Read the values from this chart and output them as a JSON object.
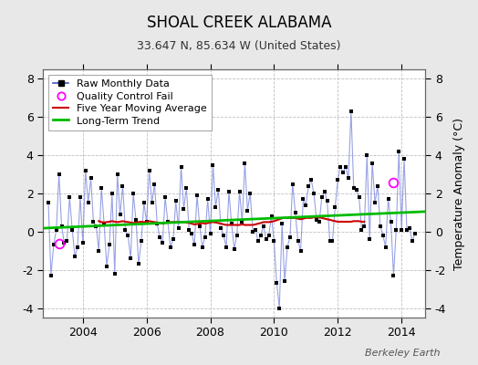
{
  "title": "SHOAL CREEK ALABAMA",
  "subtitle": "33.647 N, 85.634 W (United States)",
  "ylabel": "Temperature Anomaly (°C)",
  "watermark": "Berkeley Earth",
  "ylim": [
    -4.5,
    8.5
  ],
  "xlim": [
    2002.75,
    2014.75
  ],
  "bg_color": "#e8e8e8",
  "plot_bg_color": "#ffffff",
  "grid_color": "#c0c0c0",
  "xticks": [
    2004,
    2006,
    2008,
    2010,
    2012,
    2014
  ],
  "yticks": [
    -4,
    -2,
    0,
    2,
    4,
    6,
    8
  ],
  "raw_data_t": [
    2002.917,
    2003.0,
    2003.083,
    2003.167,
    2003.25,
    2003.333,
    2003.417,
    2003.5,
    2003.583,
    2003.667,
    2003.75,
    2003.833,
    2003.917,
    2004.0,
    2004.083,
    2004.167,
    2004.25,
    2004.333,
    2004.417,
    2004.5,
    2004.583,
    2004.667,
    2004.75,
    2004.833,
    2004.917,
    2005.0,
    2005.083,
    2005.167,
    2005.25,
    2005.333,
    2005.417,
    2005.5,
    2005.583,
    2005.667,
    2005.75,
    2005.833,
    2005.917,
    2006.0,
    2006.083,
    2006.167,
    2006.25,
    2006.333,
    2006.417,
    2006.5,
    2006.583,
    2006.667,
    2006.75,
    2006.833,
    2006.917,
    2007.0,
    2007.083,
    2007.167,
    2007.25,
    2007.333,
    2007.417,
    2007.5,
    2007.583,
    2007.667,
    2007.75,
    2007.833,
    2007.917,
    2008.0,
    2008.083,
    2008.167,
    2008.25,
    2008.333,
    2008.417,
    2008.5,
    2008.583,
    2008.667,
    2008.75,
    2008.833,
    2008.917,
    2009.0,
    2009.083,
    2009.167,
    2009.25,
    2009.333,
    2009.417,
    2009.5,
    2009.583,
    2009.667,
    2009.75,
    2009.833,
    2009.917,
    2010.0,
    2010.083,
    2010.167,
    2010.25,
    2010.333,
    2010.417,
    2010.5,
    2010.583,
    2010.667,
    2010.75,
    2010.833,
    2010.917,
    2011.0,
    2011.083,
    2011.167,
    2011.25,
    2011.333,
    2011.417,
    2011.5,
    2011.583,
    2011.667,
    2011.75,
    2011.833,
    2011.917,
    2012.0,
    2012.083,
    2012.167,
    2012.25,
    2012.333,
    2012.417,
    2012.5,
    2012.583,
    2012.667,
    2012.75,
    2012.833,
    2012.917,
    2013.0,
    2013.083,
    2013.167,
    2013.25,
    2013.333,
    2013.417,
    2013.5,
    2013.583,
    2013.667,
    2013.75,
    2013.833,
    2013.917,
    2014.0,
    2014.083,
    2014.167,
    2014.25,
    2014.333,
    2014.417
  ],
  "raw_data_v": [
    1.5,
    -2.3,
    -0.7,
    0.1,
    3.0,
    0.3,
    -0.6,
    -0.5,
    1.8,
    0.1,
    -1.3,
    -0.8,
    1.8,
    -0.6,
    3.2,
    1.5,
    2.8,
    0.5,
    0.3,
    -1.0,
    2.3,
    0.4,
    -1.8,
    -0.7,
    2.0,
    -2.2,
    3.0,
    0.9,
    2.4,
    0.1,
    -0.2,
    -1.4,
    2.0,
    0.6,
    -1.7,
    -0.5,
    1.5,
    0.5,
    3.2,
    1.5,
    2.5,
    0.4,
    -0.3,
    -0.6,
    1.8,
    0.5,
    -0.8,
    -0.4,
    1.6,
    0.2,
    3.4,
    1.2,
    2.3,
    0.1,
    -0.1,
    -0.7,
    1.9,
    0.3,
    -0.8,
    -0.3,
    1.7,
    -0.1,
    3.5,
    1.3,
    2.2,
    0.2,
    -0.2,
    -0.8,
    2.1,
    0.4,
    -0.9,
    -0.2,
    2.1,
    0.5,
    3.6,
    1.1,
    2.0,
    0.0,
    0.1,
    -0.5,
    -0.2,
    0.3,
    -0.4,
    -0.2,
    0.8,
    -0.5,
    -2.7,
    -4.0,
    0.4,
    -2.6,
    -0.8,
    -0.3,
    2.5,
    1.0,
    -0.5,
    -1.0,
    1.7,
    1.4,
    2.4,
    2.7,
    2.0,
    0.6,
    0.5,
    1.8,
    2.1,
    1.6,
    -0.5,
    -0.5,
    1.3,
    2.7,
    3.4,
    3.1,
    3.4,
    2.8,
    6.3,
    2.3,
    2.2,
    1.8,
    0.1,
    0.3,
    4.0,
    -0.4,
    3.6,
    1.5,
    2.4,
    0.3,
    -0.2,
    -0.8,
    1.7,
    0.5,
    -2.3,
    0.1,
    4.2,
    0.1,
    3.8,
    0.1,
    0.2,
    -0.5,
    -0.1
  ],
  "qc_fail": [
    {
      "t": 2003.25,
      "v": -0.65
    },
    {
      "t": 2013.75,
      "v": 2.55
    }
  ],
  "moving_avg_t": [
    2004.5,
    2004.583,
    2004.667,
    2004.75,
    2004.833,
    2004.917,
    2005.0,
    2005.083,
    2005.167,
    2005.25,
    2005.333,
    2005.417,
    2005.5,
    2005.583,
    2005.667,
    2005.75,
    2005.833,
    2005.917,
    2006.0,
    2006.083,
    2006.167,
    2006.25,
    2006.333,
    2006.417,
    2006.5,
    2006.583,
    2006.667,
    2006.75,
    2006.833,
    2006.917,
    2007.0,
    2007.083,
    2007.167,
    2007.25,
    2007.333,
    2007.417,
    2007.5,
    2007.583,
    2007.667,
    2007.75,
    2007.833,
    2007.917,
    2008.0,
    2008.083,
    2008.167,
    2008.25,
    2008.333,
    2008.417,
    2008.5,
    2008.583,
    2008.667,
    2008.75,
    2008.833,
    2008.917,
    2009.0,
    2009.083,
    2009.167,
    2009.25,
    2009.333,
    2009.417,
    2009.5,
    2009.583,
    2009.667,
    2009.75,
    2009.833,
    2009.917,
    2010.0,
    2010.083,
    2010.167,
    2010.25,
    2010.333,
    2010.417,
    2010.5,
    2010.583,
    2010.667,
    2010.75,
    2010.833,
    2010.917,
    2011.0,
    2011.083,
    2011.167,
    2011.25,
    2011.333,
    2011.417,
    2011.5,
    2011.583,
    2011.667,
    2011.75,
    2011.833,
    2011.917,
    2012.0,
    2012.083,
    2012.167,
    2012.25,
    2012.333,
    2012.417,
    2012.5,
    2012.583,
    2012.667,
    2012.75,
    2012.833
  ],
  "moving_avg_v": [
    0.55,
    0.5,
    0.48,
    0.5,
    0.52,
    0.55,
    0.52,
    0.5,
    0.52,
    0.55,
    0.52,
    0.5,
    0.48,
    0.45,
    0.48,
    0.5,
    0.52,
    0.5,
    0.52,
    0.55,
    0.52,
    0.5,
    0.48,
    0.45,
    0.42,
    0.45,
    0.48,
    0.5,
    0.5,
    0.5,
    0.5,
    0.5,
    0.5,
    0.48,
    0.45,
    0.42,
    0.38,
    0.4,
    0.42,
    0.45,
    0.42,
    0.45,
    0.48,
    0.5,
    0.48,
    0.45,
    0.42,
    0.38,
    0.35,
    0.35,
    0.35,
    0.35,
    0.35,
    0.35,
    0.38,
    0.35,
    0.35,
    0.35,
    0.35,
    0.38,
    0.42,
    0.45,
    0.5,
    0.5,
    0.5,
    0.52,
    0.55,
    0.6,
    0.65,
    0.7,
    0.72,
    0.72,
    0.72,
    0.72,
    0.72,
    0.68,
    0.65,
    0.68,
    0.72,
    0.72,
    0.72,
    0.75,
    0.75,
    0.75,
    0.72,
    0.68,
    0.65,
    0.62,
    0.58,
    0.55,
    0.52,
    0.52,
    0.52,
    0.52,
    0.52,
    0.52,
    0.55,
    0.55,
    0.55,
    0.52,
    0.52
  ],
  "trend_t": [
    2002.75,
    2014.75
  ],
  "trend_v": [
    0.18,
    1.05
  ],
  "line_color": "#4455cc",
  "line_alpha": 0.55,
  "marker_color": "#000000",
  "marker_size": 2.5,
  "moving_avg_color": "#cc0000",
  "moving_avg_lw": 1.5,
  "trend_color": "#00bb00",
  "trend_lw": 2.0,
  "qc_color": "#ff00ff",
  "qc_size": 7,
  "title_fontsize": 12,
  "subtitle_fontsize": 9,
  "tick_fontsize": 9,
  "ylabel_fontsize": 9,
  "legend_fontsize": 8,
  "watermark_fontsize": 8
}
